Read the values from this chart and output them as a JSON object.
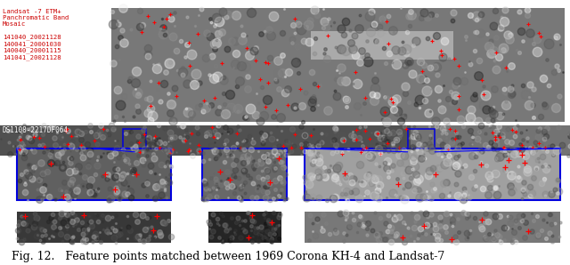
{
  "fig_width": 6.4,
  "fig_height": 2.98,
  "dpi": 100,
  "background_color": "#ffffff",
  "caption": "Fig. 12.   Feature points matched between 1969 Corona KH-4 and Landsat-7",
  "caption_fontsize": 9,
  "top_label": "Landsat -7 ETM+\nPanchromatic Band\nMosaic\n\n141040_20021128\n140041_20001030\n140040_20001115\n141041_20021128",
  "top_label_color": "#cc0000",
  "mid_label": "DS1108-2217DF064",
  "mid_label_color": "#ffffff"
}
